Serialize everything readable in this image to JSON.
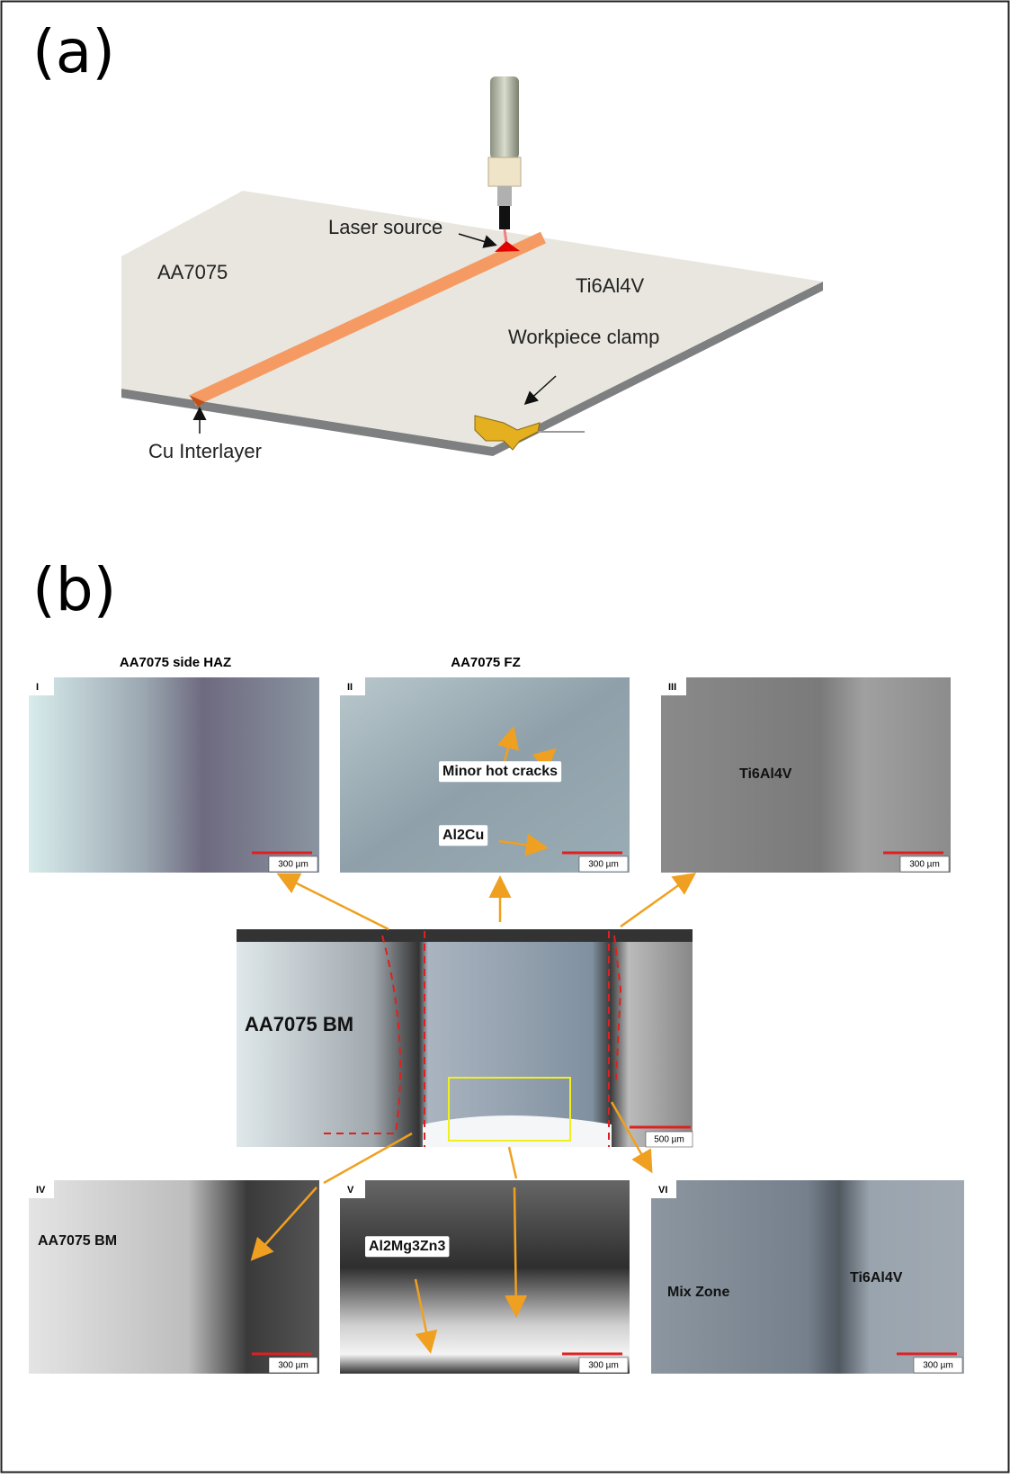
{
  "panel_a": {
    "label": "(a)",
    "laser_source": "Laser source",
    "left_plate": "AA7075",
    "right_plate": "Ti6Al4V",
    "clamp": "Workpiece clamp",
    "interlayer": "Cu Interlayer"
  },
  "panel_b": {
    "label": "(b)",
    "column_titles": [
      "AA7075 side HAZ",
      "AA7075 FZ"
    ],
    "center": {
      "annotation": "AA7075 BM",
      "scale_bar": "500 µm"
    },
    "micrographs": [
      {
        "id": "I",
        "scale_bar": "300 µm",
        "annotations": []
      },
      {
        "id": "II",
        "scale_bar": "300 µm",
        "annotations": [
          "Minor hot cracks",
          "Al2Cu"
        ]
      },
      {
        "id": "III",
        "scale_bar": "300 µm",
        "annotations": [
          "Ti6Al4V"
        ]
      },
      {
        "id": "IV",
        "scale_bar": "300 µm",
        "annotations": [
          "AA7075 BM"
        ]
      },
      {
        "id": "V",
        "scale_bar": "300 µm",
        "annotations": [
          "Al2Mg3Zn3"
        ]
      },
      {
        "id": "VI",
        "scale_bar": "300 µm",
        "annotations": [
          "Mix Zone",
          "Ti6Al4V"
        ]
      }
    ]
  }
}
